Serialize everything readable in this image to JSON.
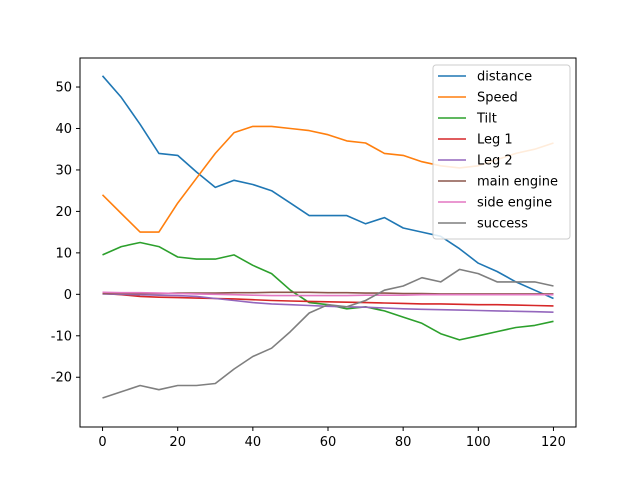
{
  "chart_data": {
    "type": "line",
    "title": "",
    "xlabel": "",
    "ylabel": "",
    "xlim": [
      -6,
      126
    ],
    "ylim": [
      -32,
      57
    ],
    "xticks": [
      0,
      20,
      40,
      60,
      80,
      100,
      120
    ],
    "yticks": [
      -20,
      -10,
      0,
      10,
      20,
      30,
      40,
      50
    ],
    "grid": false,
    "legend_position": "top-right",
    "x": [
      0,
      5,
      10,
      15,
      20,
      25,
      30,
      35,
      40,
      45,
      50,
      55,
      60,
      65,
      70,
      75,
      80,
      85,
      90,
      95,
      100,
      105,
      110,
      115,
      120
    ],
    "series": [
      {
        "name": "distance",
        "color": "#1f77b4",
        "values": [
          52.7,
          47.5,
          41.0,
          34.0,
          33.5,
          29.5,
          25.8,
          27.5,
          26.5,
          25.0,
          22.0,
          19.0,
          19.0,
          19.0,
          17.0,
          18.5,
          16.0,
          15.0,
          14.0,
          11.0,
          7.5,
          5.5,
          3.0,
          1.0,
          -1.0
        ]
      },
      {
        "name": "Speed",
        "color": "#ff7f0e",
        "values": [
          24.0,
          19.5,
          15.0,
          15.0,
          22.0,
          28.0,
          34.0,
          39.0,
          40.5,
          40.5,
          40.0,
          39.5,
          38.5,
          37.0,
          36.5,
          34.0,
          33.5,
          32.0,
          31.0,
          30.5,
          31.0,
          32.5,
          34.0,
          35.0,
          36.5
        ]
      },
      {
        "name": "Tilt",
        "color": "#2ca02c",
        "values": [
          9.5,
          11.5,
          12.5,
          11.5,
          9.0,
          8.5,
          8.5,
          9.5,
          7.0,
          5.0,
          1.0,
          -2.0,
          -2.5,
          -3.5,
          -3.0,
          -4.0,
          -5.5,
          -7.0,
          -9.5,
          -11.0,
          -10.0,
          -9.0,
          -8.0,
          -7.5,
          -6.5
        ]
      },
      {
        "name": "Leg 1",
        "color": "#d62728",
        "values": [
          0.2,
          -0.1,
          -0.5,
          -0.7,
          -0.8,
          -0.9,
          -1.0,
          -1.1,
          -1.3,
          -1.5,
          -1.6,
          -1.7,
          -1.8,
          -1.9,
          -2.0,
          -2.1,
          -2.2,
          -2.3,
          -2.3,
          -2.4,
          -2.5,
          -2.5,
          -2.6,
          -2.7,
          -2.8
        ]
      },
      {
        "name": "Leg 2",
        "color": "#9467bd",
        "values": [
          0.1,
          0.0,
          -0.1,
          -0.2,
          -0.3,
          -0.5,
          -1.0,
          -1.5,
          -2.0,
          -2.3,
          -2.5,
          -2.7,
          -2.9,
          -3.0,
          -3.1,
          -3.3,
          -3.5,
          -3.6,
          -3.7,
          -3.8,
          -3.9,
          -4.0,
          -4.1,
          -4.2,
          -4.3
        ]
      },
      {
        "name": "main engine",
        "color": "#8c564b",
        "values": [
          0.2,
          0.2,
          0.2,
          0.2,
          0.3,
          0.3,
          0.3,
          0.4,
          0.4,
          0.5,
          0.5,
          0.5,
          0.4,
          0.4,
          0.3,
          0.3,
          0.2,
          0.2,
          0.1,
          0.1,
          0.1,
          0.1,
          0.1,
          0.1,
          0.1
        ]
      },
      {
        "name": "side engine",
        "color": "#e377c2",
        "values": [
          0.5,
          0.4,
          0.4,
          0.3,
          0.2,
          0.1,
          0.0,
          -0.1,
          -0.2,
          -0.3,
          -0.3,
          -0.3,
          -0.3,
          -0.3,
          -0.2,
          -0.2,
          -0.2,
          -0.1,
          -0.1,
          -0.1,
          -0.1,
          -0.1,
          -0.1,
          -0.1,
          -0.1
        ]
      },
      {
        "name": "success",
        "color": "#7f7f7f",
        "values": [
          -25.0,
          -23.5,
          -22.0,
          -23.0,
          -22.0,
          -22.0,
          -21.5,
          -18.0,
          -15.0,
          -13.0,
          -9.0,
          -4.5,
          -2.5,
          -3.0,
          -1.5,
          1.0,
          2.0,
          4.0,
          3.0,
          6.0,
          5.0,
          3.0,
          3.0,
          3.0,
          2.0
        ]
      }
    ]
  }
}
